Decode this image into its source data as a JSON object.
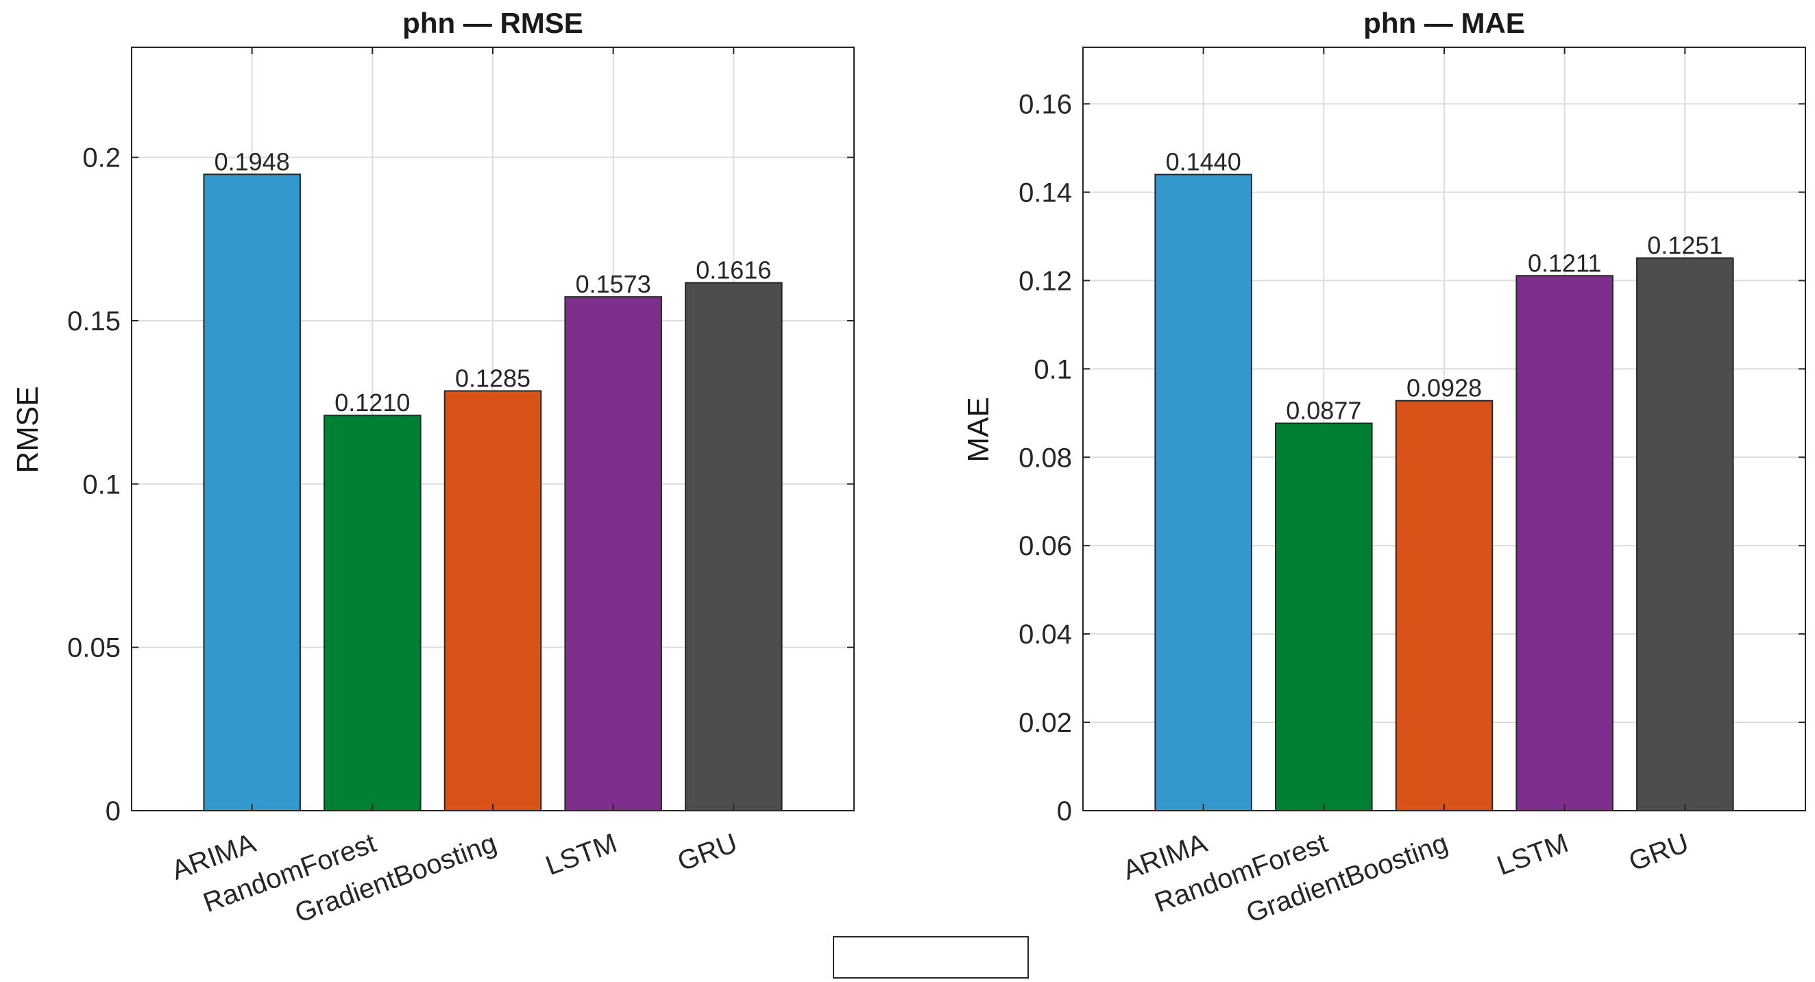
{
  "chart_data": [
    {
      "type": "bar",
      "title": "phn — RMSE",
      "xlabel": "",
      "ylabel": "RMSE",
      "categories": [
        "ARIMA",
        "RandomForest",
        "GradientBoosting",
        "LSTM",
        "GRU"
      ],
      "values": [
        0.1948,
        0.121,
        0.1285,
        0.1573,
        0.1616
      ],
      "value_labels": [
        "0.1948",
        "0.1210",
        "0.1285",
        "0.1573",
        "0.1616"
      ],
      "colors": [
        "#3399cc",
        "#008033",
        "#d95319",
        "#7e2f8e",
        "#4d4d4d"
      ],
      "ylim": [
        0,
        0.2337
      ],
      "yticks": [
        0,
        0.05,
        0.1,
        0.15,
        0.2
      ],
      "ytick_labels": [
        "0",
        "0.05",
        "0.1",
        "0.15",
        "0.2"
      ],
      "grid": true
    },
    {
      "type": "bar",
      "title": "phn — MAE",
      "xlabel": "",
      "ylabel": "MAE",
      "categories": [
        "ARIMA",
        "RandomForest",
        "GradientBoosting",
        "LSTM",
        "GRU"
      ],
      "values": [
        0.144,
        0.0877,
        0.0928,
        0.1211,
        0.1251
      ],
      "value_labels": [
        "0.1440",
        "0.0877",
        "0.0928",
        "0.1211",
        "0.1251"
      ],
      "colors": [
        "#3399cc",
        "#008033",
        "#d95319",
        "#7e2f8e",
        "#4d4d4d"
      ],
      "ylim": [
        0,
        0.1728
      ],
      "yticks": [
        0,
        0.02,
        0.04,
        0.06,
        0.08,
        0.1,
        0.12,
        0.14,
        0.16
      ],
      "ytick_labels": [
        "0",
        "0.02",
        "0.04",
        "0.06",
        "0.08",
        "0.1",
        "0.12",
        "0.14",
        "0.16"
      ],
      "grid": true
    }
  ],
  "legend": {
    "placement": "bottom-center",
    "entries": []
  }
}
